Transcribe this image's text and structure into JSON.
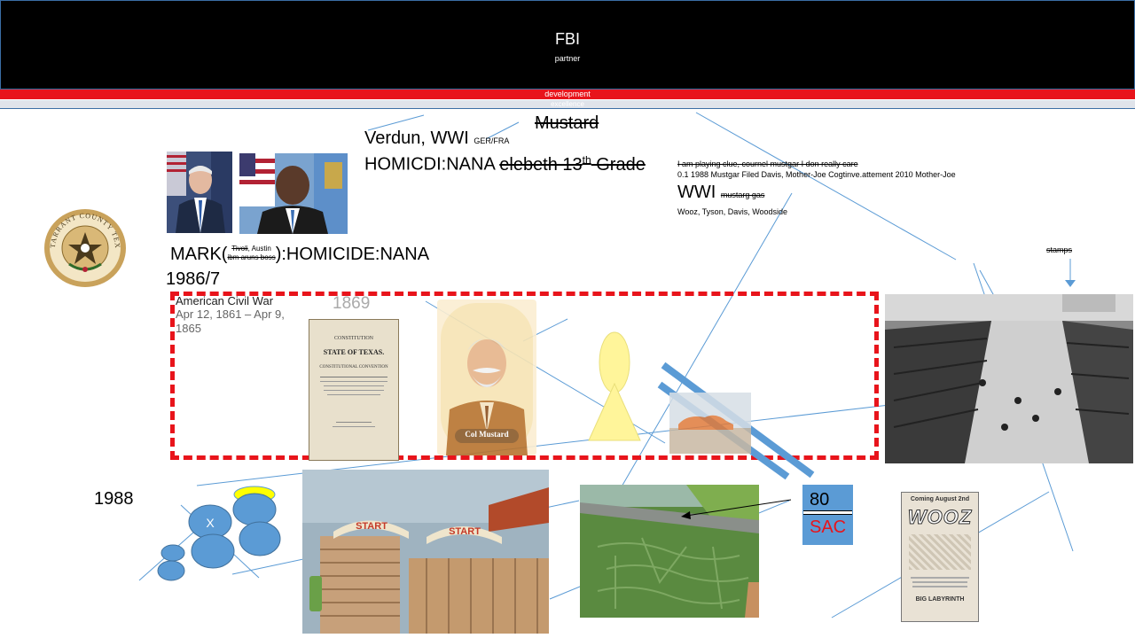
{
  "header": {
    "title": "FBI",
    "subtitle": "partner",
    "red_band_text": "development",
    "grey_band_text": "excellence"
  },
  "notes": {
    "verdun": "Verdun, WWI",
    "verdun_small": "GER/FRA",
    "mustard_struck": "Mustard",
    "homicide_prefix": "HOMICDI:NANA",
    "homicide_struck_a": "elebeth 13",
    "homicide_struck_sup": "th",
    "homicide_struck_b": " Grade",
    "clue_struck": "I am playing clue, cournel mustgar I don really care",
    "clue_line2": "0.1 1988 Mustgar Filed Davis, Mother-Joe Cogtinve.attement 2010 Mother-Joe",
    "wwi": "WWI",
    "wwi_small_struck": "mustarg gas",
    "names": "Wooz, Tyson, Davis, Woodside",
    "stamps": "stamps",
    "mark_prefix": "MARK(",
    "mark_top_struck": "Tivoli",
    "mark_top": ", Austin",
    "mark_bottom_struck": "ibm aruns boss",
    "mark_suffix": "):HOMICIDE:NANA",
    "year_1986": "1986/7",
    "civil_war_title": "American Civil War",
    "civil_war_dates": "Apr 12, 1861 – Apr 9, 1865",
    "year_1869": "1869",
    "year_1988": "1988",
    "circle_x": "X",
    "box_80": "80",
    "box_sac": "SAC"
  },
  "images": {
    "seal_text": "TARRANT COUNTY TEXAS",
    "constitution_line1": "CONSTITUTION",
    "constitution_line2": "STATE OF TEXAS.",
    "constitution_line3": "CONSTITUTIONAL CONVENTION",
    "mustard_card_label": "Col Mustard",
    "start_sign": "START",
    "poster_top": "Coming August 2nd",
    "poster_title": "WOOZ",
    "poster_bottom": "BIG LABYRINTH"
  },
  "colors": {
    "accent_red": "#e8141b",
    "shape_blue": "#5b9bd5",
    "sac_red": "#e8141b",
    "ellipse_yellow": "#ffff00"
  }
}
